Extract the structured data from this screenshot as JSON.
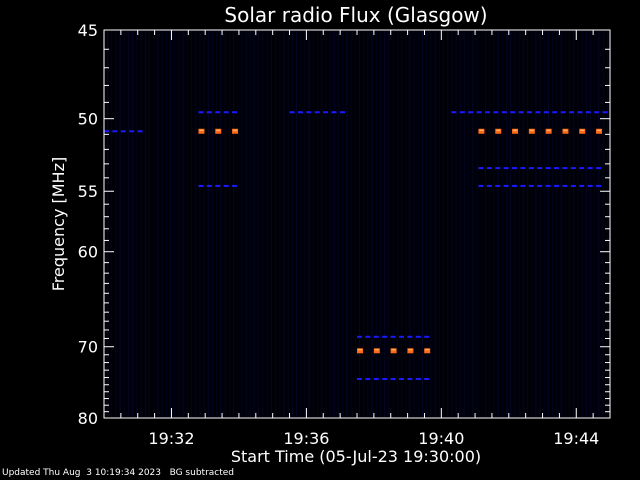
{
  "chart_data": {
    "type": "heatmap",
    "title": "Solar radio Flux (Glasgow)",
    "xlabel": "Start Time (05-Jul-23 19:30:00)",
    "ylabel": "Frequency [MHz]",
    "x_start": "19:30:00",
    "x_end": "19:45:00",
    "xlim_minutes": [
      0,
      15
    ],
    "xtick_minutes": [
      2,
      6,
      10,
      14
    ],
    "xtick_labels": [
      "19:32",
      "19:36",
      "19:40",
      "19:44"
    ],
    "ylim_mhz": [
      45,
      80
    ],
    "y_scale": "reciprocal",
    "y_inverted": true,
    "ytick_mhz": [
      45,
      50,
      55,
      60,
      70,
      80
    ],
    "ytick_labels": [
      "45",
      "50",
      "55",
      "60",
      "70",
      "80"
    ],
    "background_color": "#000008",
    "colors": {
      "weak": "#1a1aff",
      "strong": "#ff6a1a",
      "strong_edge": "#ffcc66"
    },
    "segments": [
      {
        "freq_mhz": 50.8,
        "start_min": 0.0,
        "end_min": 1.3,
        "intensity": "weak"
      },
      {
        "freq_mhz": 50.8,
        "start_min": 2.8,
        "end_min": 4.0,
        "intensity": "strong"
      },
      {
        "freq_mhz": 54.6,
        "start_min": 2.8,
        "end_min": 4.0,
        "intensity": "weak"
      },
      {
        "freq_mhz": 70.5,
        "start_min": 7.5,
        "end_min": 9.7,
        "intensity": "strong"
      },
      {
        "freq_mhz": 68.8,
        "start_min": 7.5,
        "end_min": 9.7,
        "intensity": "weak"
      },
      {
        "freq_mhz": 74.2,
        "start_min": 7.5,
        "end_min": 9.7,
        "intensity": "weak"
      },
      {
        "freq_mhz": 50.8,
        "start_min": 11.1,
        "end_min": 14.8,
        "intensity": "strong"
      },
      {
        "freq_mhz": 53.3,
        "start_min": 11.1,
        "end_min": 14.8,
        "intensity": "weak"
      },
      {
        "freq_mhz": 54.6,
        "start_min": 11.1,
        "end_min": 14.8,
        "intensity": "weak"
      },
      {
        "freq_mhz": 49.6,
        "start_min": 10.3,
        "end_min": 15.0,
        "intensity": "weak"
      },
      {
        "freq_mhz": 49.6,
        "start_min": 2.8,
        "end_min": 4.0,
        "intensity": "weak"
      },
      {
        "freq_mhz": 49.6,
        "start_min": 5.5,
        "end_min": 7.2,
        "intensity": "weak"
      }
    ]
  },
  "footer": {
    "text": "Updated Thu Aug  3 10:19:34 2023   BG subtracted"
  }
}
